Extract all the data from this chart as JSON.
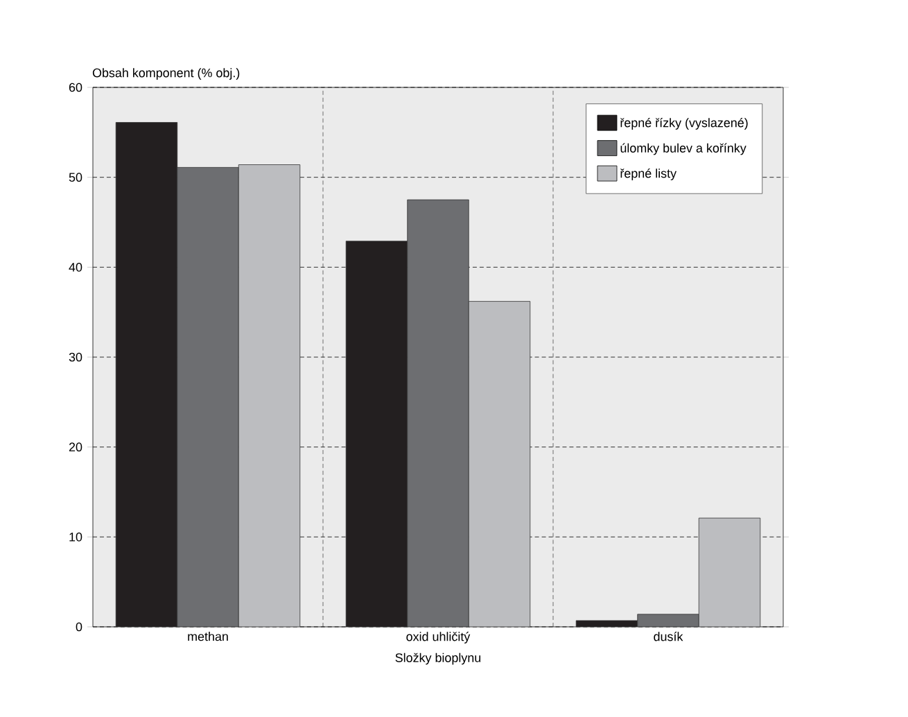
{
  "chart_data": {
    "type": "bar",
    "xlabel": "Složky bioplynu",
    "ylabel": "Obsah komponent  (% obj.)",
    "categories": [
      "methan",
      "oxid uhličitý",
      "dusík"
    ],
    "series": [
      {
        "name": "řepné řízky (vyslazené)",
        "color": "#231f20",
        "values": [
          56.1,
          42.9,
          0.7
        ]
      },
      {
        "name": "úlomky bulev a kořínky",
        "color": "#6d6e71",
        "values": [
          51.1,
          47.5,
          1.4
        ]
      },
      {
        "name": "řepné listy",
        "color": "#bcbdc0",
        "values": [
          51.4,
          36.2,
          12.1
        ]
      }
    ],
    "ylim": [
      0,
      60
    ],
    "yticks": [
      0,
      10,
      20,
      30,
      40,
      50,
      60
    ],
    "grid": true,
    "legend": "top right"
  }
}
